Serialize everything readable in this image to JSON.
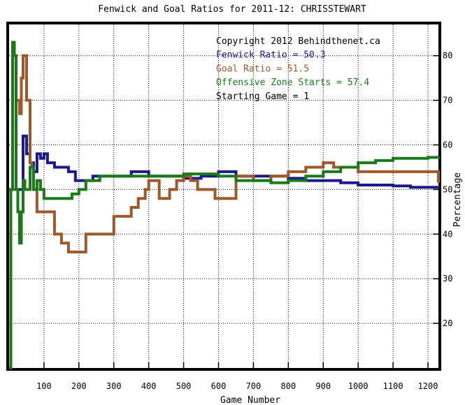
{
  "chart_data": {
    "type": "line",
    "title": "Fenwick and Goal Ratios for 2011-12: CHRISSTEWART",
    "xlabel": "Game Number",
    "ylabel": "Percentage",
    "xlim": [
      0,
      1230
    ],
    "ylim": [
      10,
      87
    ],
    "x_ticks": [
      100,
      200,
      300,
      400,
      500,
      600,
      700,
      800,
      900,
      1000,
      1100,
      1200
    ],
    "y_ticks": [
      20,
      30,
      40,
      50,
      60,
      70,
      80
    ],
    "grid": true,
    "legend_placement": "top-right",
    "annotations": [
      {
        "text": "Copyright 2012 Behindthenet.ca",
        "color": "#000000"
      },
      {
        "text": "Fenwick Ratio = 50.3",
        "color": "#1a1a8c"
      },
      {
        "text": "Goal Ratio = 51.5",
        "color": "#a0582a"
      },
      {
        "text": "Offensive Zone Starts = 57.4",
        "color": "#1a7a1a"
      },
      {
        "text": "Starting Game = 1",
        "color": "#000000"
      }
    ],
    "series": [
      {
        "color": "#1a1a8c",
        "x": [
          0,
          15,
          25,
          40,
          50,
          60,
          70,
          80,
          90,
          100,
          110,
          120,
          130,
          150,
          170,
          190,
          210,
          240,
          270,
          300,
          330,
          350,
          380,
          400,
          430,
          460,
          500,
          550,
          600,
          620,
          650,
          700,
          750,
          800,
          850,
          900,
          950,
          1000,
          1050,
          1100,
          1150,
          1200,
          1230
        ],
        "values": [
          50,
          50,
          50,
          62,
          58,
          56,
          54,
          58,
          57,
          58,
          56,
          56,
          55,
          55,
          54,
          52,
          52,
          53,
          53,
          53,
          53,
          54,
          54,
          53,
          53,
          53,
          52.5,
          53,
          54,
          54,
          53,
          53,
          53,
          52.5,
          52,
          52,
          51.5,
          51,
          51,
          50.8,
          50.5,
          50.5,
          50.3
        ]
      },
      {
        "color": "#a0582a",
        "x": [
          0,
          15,
          20,
          30,
          35,
          40,
          50,
          60,
          65,
          70,
          80,
          90,
          100,
          110,
          130,
          150,
          170,
          190,
          200,
          220,
          240,
          260,
          280,
          300,
          320,
          350,
          370,
          390,
          400,
          430,
          460,
          480,
          500,
          520,
          540,
          560,
          590,
          620,
          650,
          700,
          750,
          800,
          850,
          900,
          930,
          950,
          1000,
          1050,
          1100,
          1150,
          1200,
          1230
        ],
        "values": [
          50,
          50,
          70,
          67,
          75,
          80,
          70,
          56,
          55,
          50,
          45,
          45,
          45,
          45,
          40,
          38,
          36,
          36,
          36,
          40,
          40,
          40,
          40,
          44,
          44,
          46,
          48,
          50,
          52,
          48,
          50,
          52,
          53,
          52,
          50,
          50,
          48,
          48,
          53,
          52,
          53,
          54,
          55,
          56,
          55,
          55,
          54,
          54,
          54,
          54,
          54,
          51.5
        ]
      },
      {
        "color": "#1a7a1a",
        "x": [
          0,
          5,
          10,
          15,
          20,
          25,
          30,
          35,
          40,
          45,
          50,
          55,
          60,
          70,
          80,
          90,
          100,
          110,
          120,
          140,
          160,
          180,
          200,
          220,
          240,
          260,
          300,
          350,
          400,
          450,
          500,
          550,
          600,
          650,
          700,
          750,
          800,
          850,
          900,
          950,
          1000,
          1050,
          1100,
          1150,
          1200,
          1230
        ],
        "values": [
          10,
          50,
          83,
          80,
          50,
          45,
          38,
          45,
          52,
          50,
          50,
          50,
          55,
          50,
          52,
          50,
          48,
          48,
          48,
          48,
          48,
          49,
          50,
          52,
          52,
          53,
          53,
          53,
          53,
          53,
          53.5,
          53.5,
          53,
          52,
          52,
          51.5,
          52,
          53,
          54,
          55,
          56,
          56.5,
          57,
          57,
          57.2,
          57.4
        ]
      }
    ]
  }
}
